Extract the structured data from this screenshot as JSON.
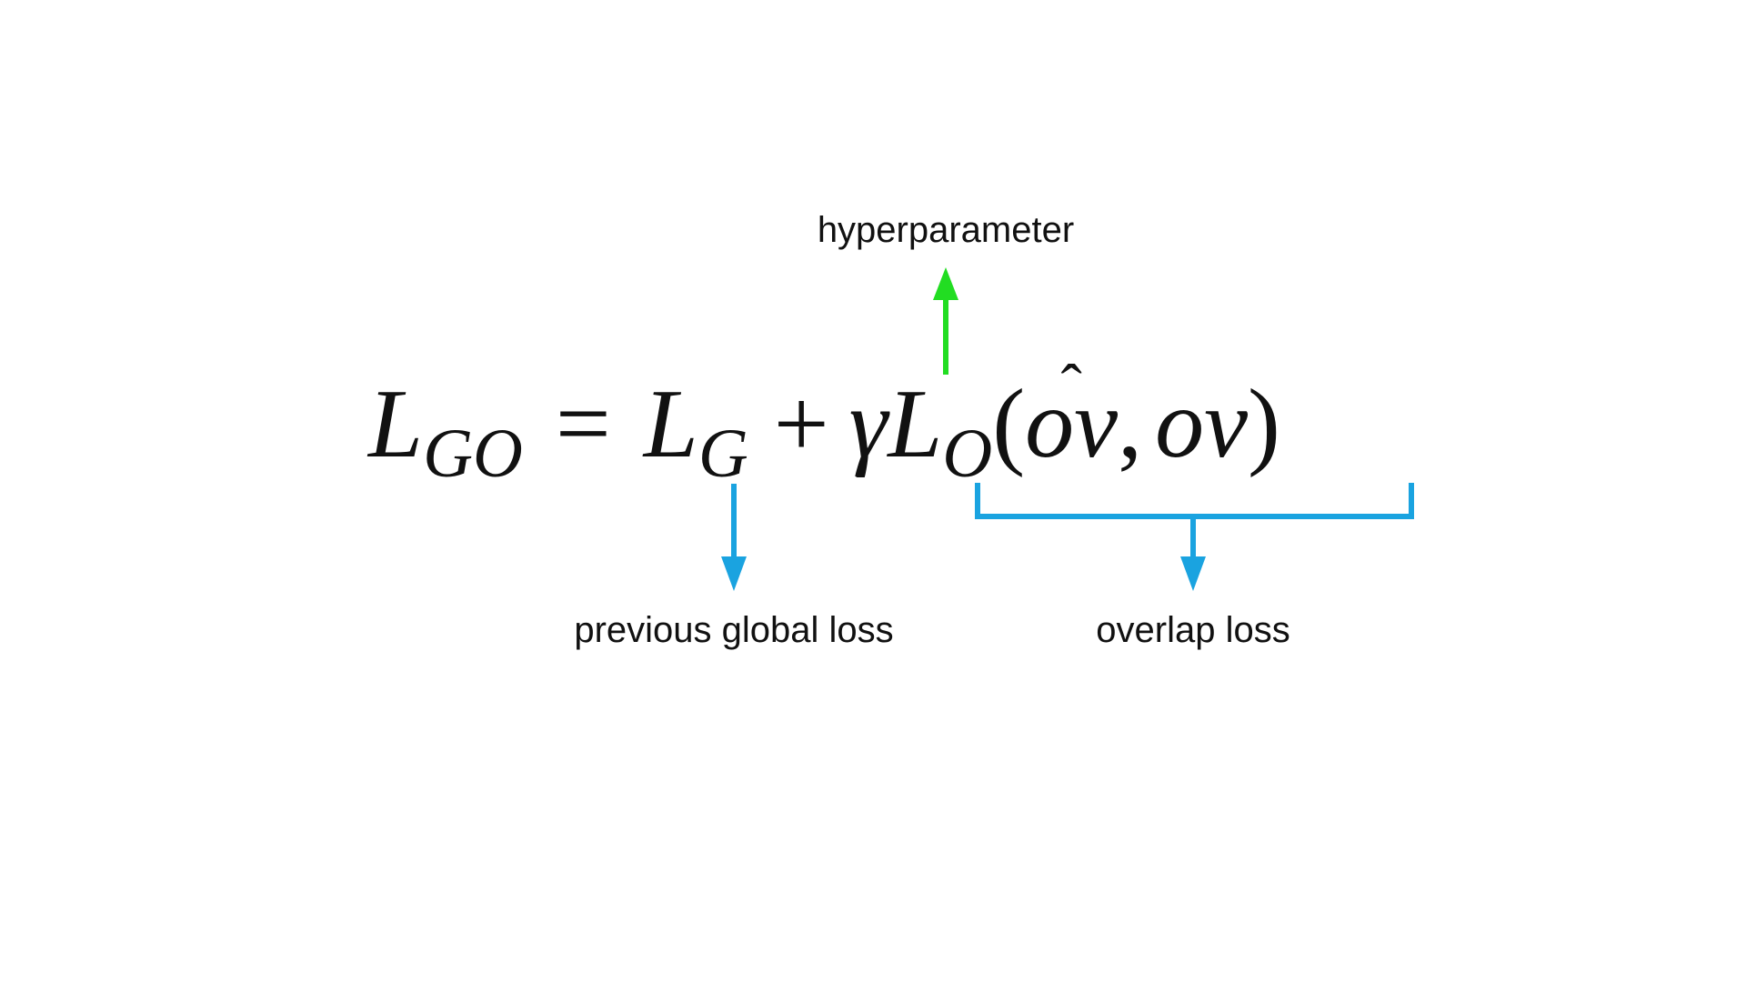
{
  "equation": {
    "lhs_symbol": "L",
    "lhs_subscript": "GO",
    "equals": "=",
    "term1_symbol": "L",
    "term1_subscript": "G",
    "plus": "+",
    "gamma": "γ",
    "term2_symbol": "L",
    "term2_subscript": "O",
    "open_paren": "(",
    "arg1_o": "o",
    "arg1_hat": "ˆ",
    "arg1_v": "v",
    "comma": ",",
    "arg2": "ov",
    "close_paren": ")"
  },
  "annotations": {
    "hyperparameter": "hyperparameter",
    "previous_global_loss": "previous global loss",
    "overlap_loss": "overlap loss"
  },
  "colors": {
    "hyperparameter_arrow": "#22dd22",
    "loss_arrows": "#1aa3e0",
    "text": "#111111",
    "background": "#ffffff"
  }
}
